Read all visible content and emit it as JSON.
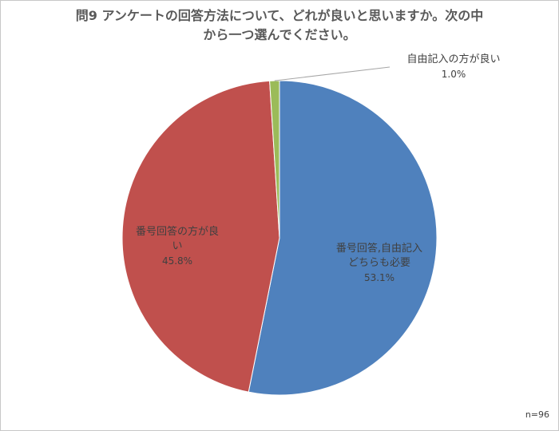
{
  "chart_data": {
    "type": "pie",
    "title_lines": [
      "問9 アンケートの回答方法について、どれが良いと思いますか。次の中",
      "から一つ選んでください。"
    ],
    "slices": [
      {
        "label_lines": [
          "番号回答,自由記入",
          "どちらも必要"
        ],
        "percent_label": "53.1%",
        "value": 53.1,
        "color": "#4f81bd"
      },
      {
        "label_lines": [
          "番号回答の方が良",
          "い"
        ],
        "percent_label": "45.8%",
        "value": 45.8,
        "color": "#c0504d"
      },
      {
        "label_lines": [
          "自由記入の方が良い"
        ],
        "percent_label": "1.0%",
        "value": 1.0,
        "color": "#9bbb59"
      }
    ],
    "note": "n=96"
  }
}
